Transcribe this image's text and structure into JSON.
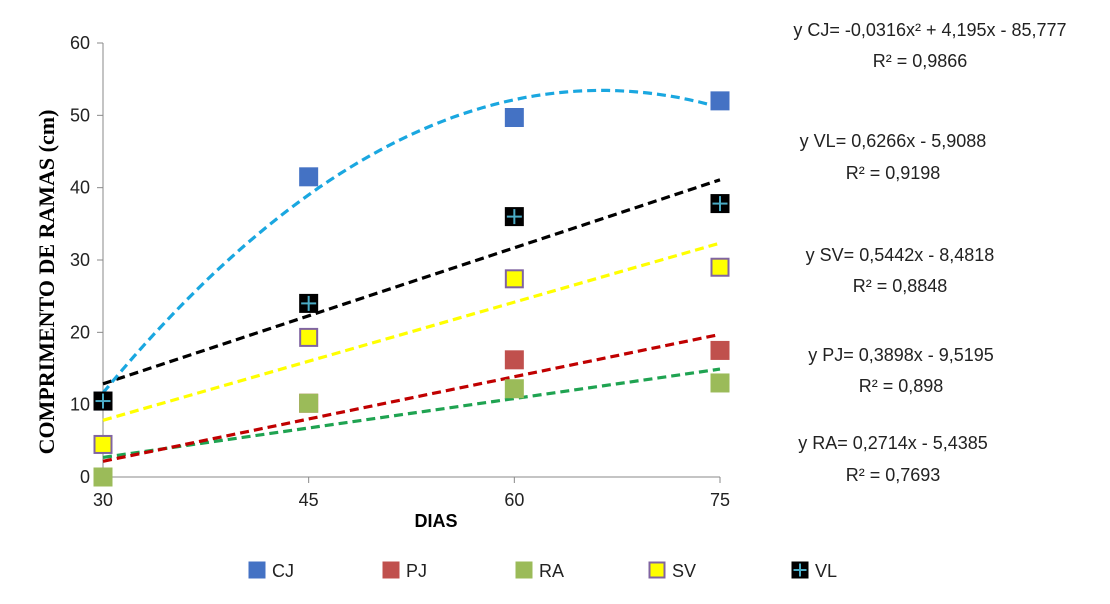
{
  "chart_data": {
    "type": "scatter",
    "xlabel": "DIAS",
    "ylabel": "COMPRIMENTO DE RAMAS (cm)",
    "xlim": [
      30,
      75
    ],
    "ylim": [
      0,
      60
    ],
    "x_ticks": [
      "30",
      "45",
      "60",
      "75"
    ],
    "y_ticks": [
      "0",
      "10",
      "20",
      "30",
      "40",
      "50",
      "60"
    ],
    "x": [
      30,
      45,
      60,
      75
    ],
    "grid": false,
    "legend_position": "bottom",
    "series": [
      {
        "name": "CJ",
        "values": [
          10.5,
          41.5,
          49.7,
          52.0
        ],
        "color": "#4472C4",
        "marker": "square",
        "trend_color": "#1AA7E0",
        "trend": "polynomial",
        "trend_coeffs": [
          -0.0316,
          4.195,
          -85.777
        ],
        "equation": "y CJ= -0,0316x² + 4,195x - 85,777",
        "r2": "R² = 0,9866"
      },
      {
        "name": "PJ",
        "values": [
          0.0,
          10.2,
          16.2,
          17.5
        ],
        "color": "#C0504D",
        "marker": "square",
        "trend_color": "#C00000",
        "trend": "linear",
        "trend_coeffs": [
          0.3898,
          -9.5195
        ],
        "equation": "y PJ= 0,3898x - 9,5195",
        "r2": "R² = 0,898"
      },
      {
        "name": "RA",
        "values": [
          0.0,
          10.2,
          12.2,
          13.0
        ],
        "color": "#9BBB59",
        "marker": "square",
        "trend_color": "#1FA351",
        "trend": "linear",
        "trend_coeffs": [
          0.2714,
          -5.4385
        ],
        "equation": "y RA= 0,2714x - 5,4385",
        "r2": "R² = 0,7693"
      },
      {
        "name": "SV",
        "values": [
          4.5,
          19.3,
          27.4,
          29.0
        ],
        "color": "#FFFF00",
        "marker": "square-outlined",
        "edge_color": "#8064A2",
        "trend_color": "#FFFF00",
        "trend": "linear",
        "trend_coeffs": [
          0.5442,
          -8.4818
        ],
        "equation": "y  SV= 0,5442x - 8,4818",
        "r2": "R² = 0,8848"
      },
      {
        "name": "VL",
        "values": [
          10.5,
          24.0,
          36.0,
          37.8
        ],
        "color": "#000000",
        "marker": "square-plus",
        "plus_color": "#4BACC6",
        "trend_color": "#000000",
        "trend": "linear",
        "trend_coeffs": [
          0.6266,
          -5.9088
        ],
        "equation": "y VL= 0,6266x - 5,9088",
        "r2": "R² = 0,9198"
      }
    ]
  }
}
